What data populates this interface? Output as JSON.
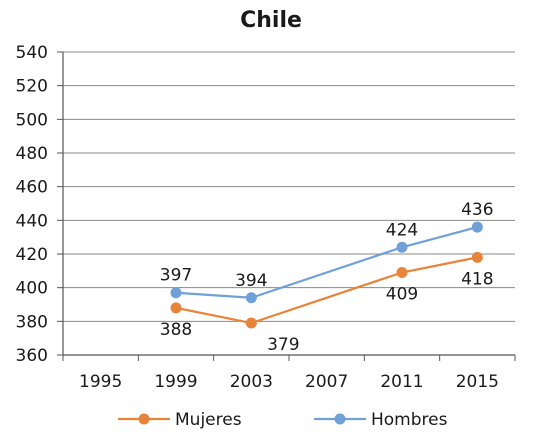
{
  "chart_data": {
    "type": "line",
    "title": "Chile",
    "xlabel": "",
    "ylabel": "",
    "x": [
      "1995",
      "1999",
      "2003",
      "2007",
      "2011",
      "2015"
    ],
    "ylim": [
      360,
      540
    ],
    "yticks": [
      360,
      380,
      400,
      420,
      440,
      460,
      480,
      500,
      520,
      540
    ],
    "grid": true,
    "legend": "bottom",
    "series": [
      {
        "name": "Mujeres",
        "color": "#e8843a",
        "points": [
          {
            "x": "1999",
            "y": 388
          },
          {
            "x": "2003",
            "y": 379
          },
          {
            "x": "2011",
            "y": 409
          },
          {
            "x": "2015",
            "y": 418
          }
        ],
        "labels": [
          "388",
          "379",
          "409",
          "418"
        ],
        "label_side": "below"
      },
      {
        "name": "Hombres",
        "color": "#6fa0d8",
        "points": [
          {
            "x": "1999",
            "y": 397
          },
          {
            "x": "2003",
            "y": 394
          },
          {
            "x": "2011",
            "y": 424
          },
          {
            "x": "2015",
            "y": 436
          }
        ],
        "labels": [
          "397",
          "394",
          "424",
          "436"
        ],
        "label_side": "above"
      }
    ]
  }
}
